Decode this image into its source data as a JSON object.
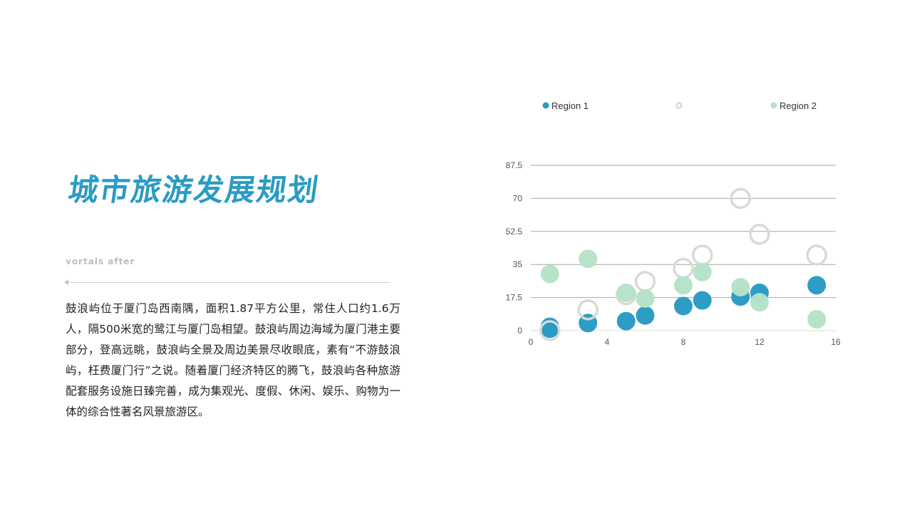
{
  "slide": {
    "title": "城市旅游发展规划",
    "subtitle": "vortals after",
    "body": "鼓浪屿位于厦门岛西南隅，面积1.87平方公里，常住人口约1.6万人，隔500米宽的鹭江与厦门岛相望。鼓浪屿周边海域为厦门港主要部分，登高远眺，鼓浪屿全景及周边美景尽收眼底，素有“不游鼓浪屿，枉费厦门行”之说。随着厦门经济特区的腾飞，鼓浪屿各种旅游配套服务设施日臻完善，成为集观光、度假、休闲、娱乐、购物为一体的综合性著名风景旅游区。"
  },
  "colors": {
    "title": "#2a9bc4",
    "region1": "#2a9bc4",
    "region2": "#b5e2c8",
    "unnamed_series": "#d9d9d9",
    "gridline": "#a6a6a6",
    "axis_text": "#555555"
  },
  "chart_data": {
    "type": "scatter",
    "subtype": "bubble",
    "title": "",
    "xlabel": "",
    "ylabel": "",
    "xlim": [
      0,
      16
    ],
    "ylim": [
      0,
      87.5
    ],
    "x_ticks": [
      "0",
      "4",
      "8",
      "12",
      "16"
    ],
    "y_ticks": [
      "0",
      "17.5",
      "35",
      "52.5",
      "70",
      "87.5"
    ],
    "grid": "horizontal",
    "legend_position": "top",
    "series": [
      {
        "name": "Region 1",
        "style": "filled",
        "points": [
          {
            "x": 1,
            "y": 2
          },
          {
            "x": 1,
            "y": 1
          },
          {
            "x": 3,
            "y": 4
          },
          {
            "x": 5,
            "y": 5
          },
          {
            "x": 6,
            "y": 8
          },
          {
            "x": 8,
            "y": 13
          },
          {
            "x": 9,
            "y": 16
          },
          {
            "x": 11,
            "y": 18
          },
          {
            "x": 12,
            "y": 20
          },
          {
            "x": 15,
            "y": 24
          }
        ]
      },
      {
        "name": "",
        "style": "ring",
        "points": [
          {
            "x": 1,
            "y": 0
          },
          {
            "x": 3,
            "y": 11
          },
          {
            "x": 5,
            "y": 19
          },
          {
            "x": 6,
            "y": 26
          },
          {
            "x": 8,
            "y": 33
          },
          {
            "x": 9,
            "y": 40
          },
          {
            "x": 11,
            "y": 70
          },
          {
            "x": 12,
            "y": 51
          },
          {
            "x": 15,
            "y": 40
          }
        ]
      },
      {
        "name": "Region 2",
        "style": "filled",
        "points": [
          {
            "x": 1,
            "y": 30
          },
          {
            "x": 3,
            "y": 38
          },
          {
            "x": 5,
            "y": 20
          },
          {
            "x": 6,
            "y": 17
          },
          {
            "x": 8,
            "y": 24
          },
          {
            "x": 9,
            "y": 31
          },
          {
            "x": 11,
            "y": 23
          },
          {
            "x": 12,
            "y": 15
          },
          {
            "x": 15,
            "y": 6
          }
        ]
      }
    ]
  }
}
